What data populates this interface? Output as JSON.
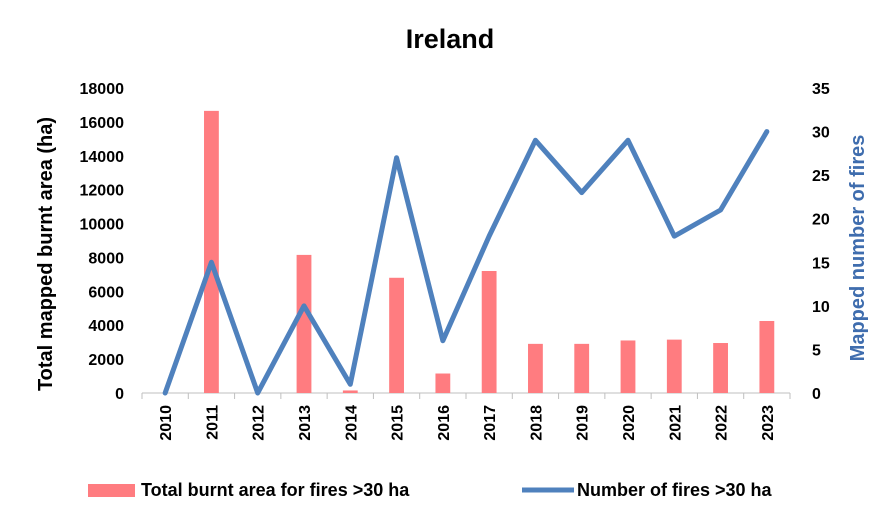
{
  "chart_data": {
    "type": "bar",
    "title": "Ireland",
    "categories": [
      "2010",
      "2011",
      "2012",
      "2013",
      "2014",
      "2015",
      "2016",
      "2017",
      "2018",
      "2019",
      "2020",
      "2021",
      "2022",
      "2023"
    ],
    "series": [
      {
        "name": "Total burnt area for fires >30 ha",
        "type": "bar",
        "axis": "left",
        "color": "#FF7C80",
        "values": [
          0,
          16650,
          0,
          8150,
          150,
          6800,
          1150,
          7200,
          2900,
          2900,
          3100,
          3150,
          2950,
          4250
        ]
      },
      {
        "name": "Number of fires >30 ha",
        "type": "line",
        "axis": "right",
        "color": "#4F81BD",
        "values": [
          0,
          15,
          0,
          10,
          1,
          27,
          6,
          18,
          29,
          23,
          29,
          18,
          21,
          30
        ]
      }
    ],
    "ylabel": "Total mapped burnt area (ha)",
    "y2label": "Mapped number of fires",
    "ylim": [
      0,
      18000
    ],
    "y2lim": [
      0,
      35
    ],
    "yticks": [
      0,
      2000,
      4000,
      6000,
      8000,
      10000,
      12000,
      14000,
      16000,
      18000
    ],
    "y2ticks": [
      0,
      5,
      10,
      15,
      20,
      25,
      30,
      35
    ],
    "grid": false,
    "legend_position": "bottom"
  }
}
